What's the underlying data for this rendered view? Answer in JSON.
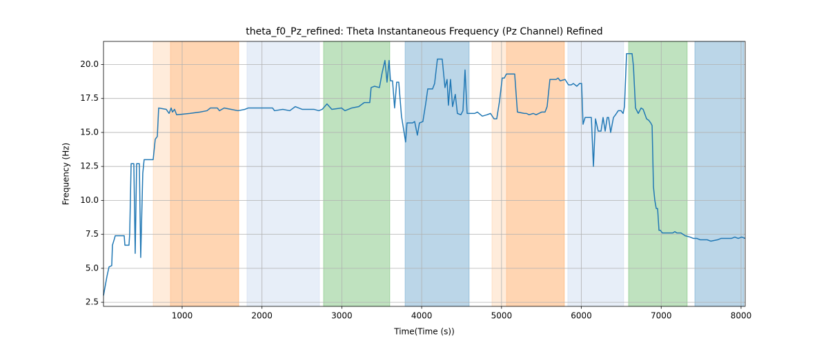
{
  "chart_data": {
    "type": "line",
    "title": "theta_f0_Pz_refined: Theta Instantaneous Frequency (Pz Channel) Refined",
    "xlabel": "Time(Time (s))",
    "ylabel": "Frequency (Hz)",
    "color": "#1f77b4",
    "grid": true,
    "xlim": [
      15,
      8052
    ],
    "ylim": [
      2.2,
      21.7
    ],
    "xticks": [
      1000,
      2000,
      3000,
      4000,
      5000,
      6000,
      7000,
      8000
    ],
    "yticks": [
      2.5,
      {
        "value": 5,
        "label": "5.0"
      },
      7.5,
      {
        "value": 10,
        "label": "10.0"
      },
      12.5,
      {
        "value": 15,
        "label": "15.0"
      },
      17.5,
      {
        "value": 20,
        "label": "20.0"
      }
    ],
    "spans": [
      {
        "start": 637,
        "end": 1709,
        "color": "#ff7f0e",
        "opacity": 0.15
      },
      {
        "start": 853,
        "end": 1709,
        "color": "#ff7f0e",
        "opacity": 0.2
      },
      {
        "start": 1812,
        "end": 2719,
        "color": "#aec7e8",
        "opacity": 0.3
      },
      {
        "start": 2771,
        "end": 3601,
        "color": "#2ca02c",
        "opacity": 0.3
      },
      {
        "start": 3792,
        "end": 4595,
        "color": "#1f77b4",
        "opacity": 0.3
      },
      {
        "start": 4880,
        "end": 5787,
        "color": "#ff7f0e",
        "opacity": 0.15
      },
      {
        "start": 5062,
        "end": 5787,
        "color": "#ff7f0e",
        "opacity": 0.2
      },
      {
        "start": 5830,
        "end": 6530,
        "color": "#aec7e8",
        "opacity": 0.3
      },
      {
        "start": 6591,
        "end": 7326,
        "color": "#2ca02c",
        "opacity": 0.3
      },
      {
        "start": 7421,
        "end": 8035,
        "color": "#1f77b4",
        "opacity": 0.3
      }
    ],
    "x": [
      15,
      58,
      84,
      118,
      127,
      153,
      162,
      274,
      283,
      334,
      343,
      361,
      395,
      412,
      430,
      464,
      481,
      507,
      524,
      637,
      663,
      689,
      706,
      801,
      836,
      862,
      879,
      905,
      931,
      1095,
      1225,
      1311,
      1354,
      1441,
      1467,
      1527,
      1613,
      1700,
      1786,
      1829,
      2132,
      2157,
      2261,
      2348,
      2417,
      2503,
      2650,
      2711,
      2754,
      2814,
      2875,
      2996,
      3039,
      3125,
      3212,
      3281,
      3350,
      3367,
      3410,
      3471,
      3505,
      3540,
      3566,
      3592,
      3609,
      3635,
      3661,
      3687,
      3713,
      3747,
      3799,
      3816,
      3886,
      3912,
      3946,
      3972,
      4015,
      4050,
      4076,
      4136,
      4162,
      4197,
      4257,
      4292,
      4318,
      4335,
      4361,
      4387,
      4421,
      4447,
      4491,
      4517,
      4543,
      4569,
      4664,
      4698,
      4759,
      4819,
      4862,
      4906,
      4940,
      4975,
      5009,
      5035,
      5061,
      5165,
      5199,
      5286,
      5312,
      5346,
      5398,
      5433,
      5502,
      5545,
      5571,
      5606,
      5683,
      5709,
      5735,
      5796,
      5839,
      5874,
      5900,
      5943,
      5977,
      6003,
      6021,
      6047,
      6125,
      6151,
      6177,
      6211,
      6246,
      6272,
      6298,
      6324,
      6341,
      6367,
      6402,
      6428,
      6462,
      6497,
      6523,
      6540,
      6566,
      6635,
      6652,
      6678,
      6713,
      6748,
      6774,
      6817,
      6843,
      6869,
      6886,
      6903,
      6920,
      6938,
      6955,
      6972,
      6989,
      7015,
      7145,
      7170,
      7196,
      7248,
      7300,
      7361,
      7404,
      7447,
      7490,
      7576,
      7620,
      7706,
      7749,
      7879,
      7922,
      7965,
      8008,
      8052
    ],
    "values": [
      3.0,
      4.4,
      5.1,
      5.2,
      6.7,
      7.2,
      7.4,
      7.4,
      6.7,
      6.7,
      7.5,
      12.7,
      12.7,
      6.1,
      12.7,
      12.7,
      5.8,
      12.0,
      13.0,
      13.0,
      14.5,
      14.7,
      16.8,
      16.7,
      16.4,
      16.8,
      16.5,
      16.7,
      16.3,
      16.4,
      16.5,
      16.6,
      16.8,
      16.8,
      16.6,
      16.8,
      16.7,
      16.6,
      16.7,
      16.8,
      16.8,
      16.6,
      16.7,
      16.6,
      16.9,
      16.7,
      16.7,
      16.6,
      16.7,
      17.1,
      16.7,
      16.8,
      16.6,
      16.8,
      16.9,
      17.2,
      17.2,
      18.3,
      18.4,
      18.3,
      19.4,
      20.3,
      18.7,
      20.3,
      18.8,
      18.8,
      16.8,
      18.7,
      18.7,
      16.2,
      14.3,
      15.7,
      15.7,
      15.8,
      14.8,
      15.7,
      15.8,
      17.1,
      18.2,
      18.2,
      18.6,
      20.4,
      20.4,
      18.3,
      18.9,
      17.0,
      18.9,
      16.9,
      17.8,
      16.4,
      16.3,
      16.6,
      19.6,
      16.4,
      16.4,
      16.5,
      16.2,
      16.3,
      16.4,
      16.0,
      16.0,
      17.3,
      19.0,
      19.0,
      19.3,
      19.3,
      16.5,
      16.4,
      16.4,
      16.3,
      16.4,
      16.3,
      16.5,
      16.5,
      16.9,
      18.9,
      18.9,
      19.0,
      18.8,
      18.9,
      18.5,
      18.5,
      18.6,
      18.4,
      18.6,
      18.6,
      15.6,
      16.1,
      16.1,
      12.5,
      16.0,
      15.1,
      15.1,
      16.1,
      15.1,
      16.1,
      16.1,
      15.0,
      16.1,
      16.3,
      16.6,
      16.6,
      16.4,
      16.9,
      20.8,
      20.8,
      19.9,
      16.8,
      16.4,
      16.8,
      16.7,
      16.0,
      15.9,
      15.7,
      15.5,
      11.0,
      10.0,
      9.4,
      9.4,
      7.8,
      7.8,
      7.6,
      7.6,
      7.7,
      7.6,
      7.6,
      7.4,
      7.3,
      7.2,
      7.2,
      7.1,
      7.1,
      7.0,
      7.1,
      7.2,
      7.2,
      7.3,
      7.2,
      7.3,
      7.2
    ]
  }
}
